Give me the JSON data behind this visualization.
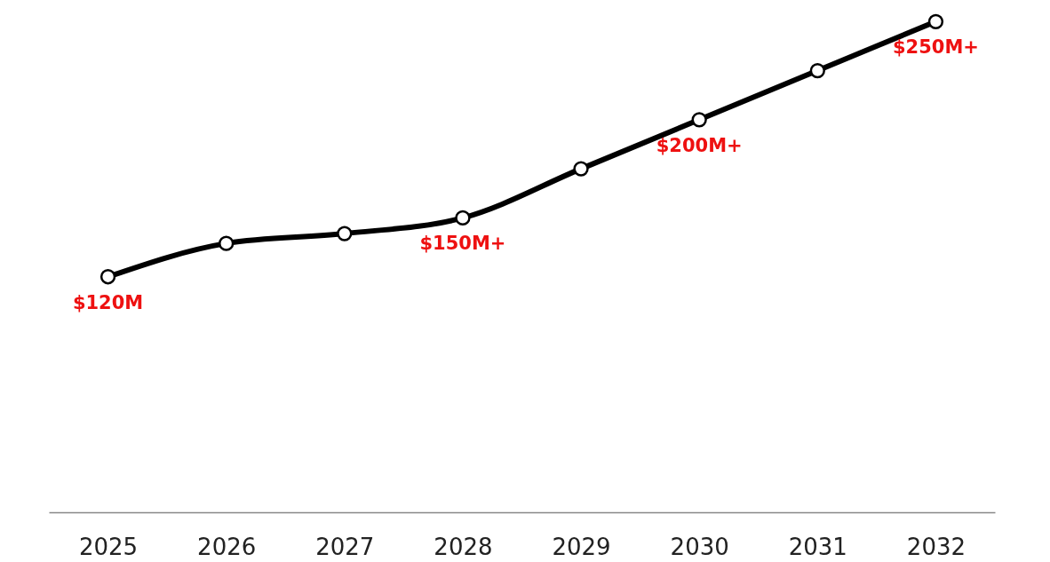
{
  "chart_data": {
    "type": "line",
    "categories": [
      "2025",
      "2026",
      "2027",
      "2028",
      "2029",
      "2030",
      "2031",
      "2032"
    ],
    "values": [
      120,
      137,
      142,
      150,
      175,
      200,
      225,
      250
    ],
    "value_labels": [
      "$120M",
      null,
      null,
      "$150M+",
      null,
      "$200M+",
      null,
      "$250M+"
    ],
    "color": "#000000",
    "marker": "circle",
    "ylim": [
      0,
      261
    ],
    "tick_labels": "x",
    "grid": false
  }
}
